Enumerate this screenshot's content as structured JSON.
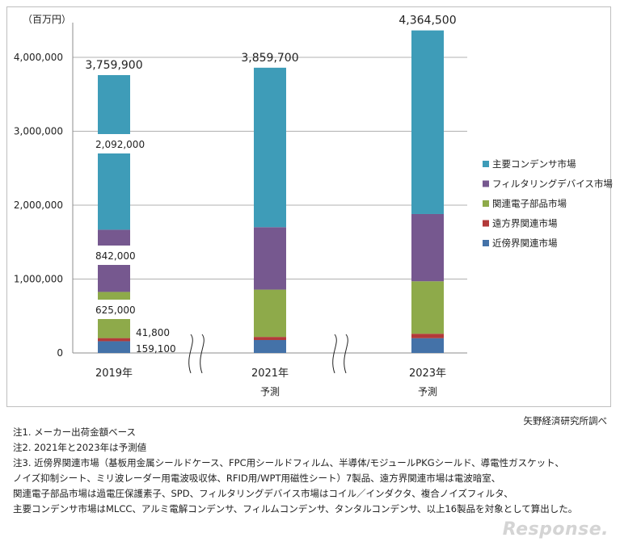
{
  "chart_data": {
    "type": "bar",
    "stacked": true,
    "unit_label": "（百万円）",
    "categories": [
      "2019年",
      "2021年",
      "2023年"
    ],
    "category_sublabels": [
      "",
      "予測",
      "予測"
    ],
    "ylim": [
      0,
      4000000
    ],
    "yticks": [
      "0",
      "1,000,000",
      "2,000,000",
      "3,000,000",
      "4,000,000"
    ],
    "ytick_values": [
      0,
      1000000,
      2000000,
      3000000,
      4000000
    ],
    "series": [
      {
        "name": "近傍界関連市場",
        "color": "#4472a8",
        "values": [
          159100,
          175000,
          200000
        ]
      },
      {
        "name": "遠方界関連市場",
        "color": "#b23a3a",
        "values": [
          41800,
          42000,
          60000
        ]
      },
      {
        "name": "関連電子部品市場",
        "color": "#8eaa4a",
        "values": [
          625000,
          640000,
          710000
        ]
      },
      {
        "name": "フィルタリングデバイス市場",
        "color": "#76588f",
        "values": [
          842000,
          845000,
          910000
        ]
      },
      {
        "name": "主要コンデンサ市場",
        "color": "#3e9cb8",
        "values": [
          2092000,
          2157700,
          2484500
        ]
      }
    ],
    "totals": [
      3759900,
      3859700,
      4364500
    ],
    "total_labels": [
      "3,759,900",
      "3,859,700",
      "4,364,500"
    ],
    "segment_labels_2019": [
      "159,100",
      "41,800",
      "625,000",
      "842,000",
      "2,092,000"
    ],
    "legend_position": "right",
    "grid": true
  },
  "notes": [
    "注1.  メーカー出荷金額ベース",
    "注2.  2021年と2023年は予測値",
    "注3.  近傍界関連市場（基板用金属シールドケース、FPC用シールドフィルム、半導体/モジュールPKGシールド、導電性ガスケット、",
    "ノイズ抑制シート、ミリ波レーダー用電波吸収体、RFID用/WPT用磁性シート）7製品、遠方界関連市場は電波暗室、",
    "関連電子部品市場は過電圧保護素子、SPD、フィルタリングデバイス市場はコイル／インダクタ、複合ノイズフィルタ、",
    "主要コンデンサ市場はMLCC、アルミ電解コンデンサ、フィルムコンデンサ、タンタルコンデンサ、以上16製品を対象として算出した。"
  ],
  "source": "矢野経済研究所調べ",
  "watermark": "Response."
}
